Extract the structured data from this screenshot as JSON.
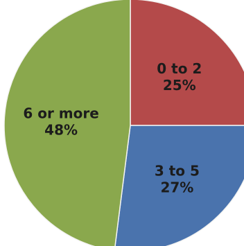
{
  "chart_data": {
    "type": "pie",
    "slices": [
      {
        "label": "0 to 2",
        "value": 25,
        "value_label": "25%",
        "color": "#b44a4a"
      },
      {
        "label": "3 to 5",
        "value": 27,
        "value_label": "27%",
        "color": "#4a73ad"
      },
      {
        "label": "6 or more",
        "value": 48,
        "value_label": "48%",
        "color": "#8aa84d"
      }
    ],
    "start": "top",
    "direction": "clockwise"
  }
}
